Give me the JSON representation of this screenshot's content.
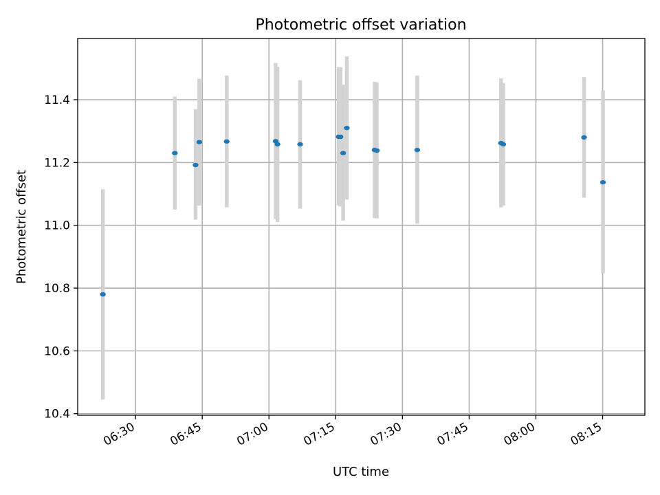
{
  "chart_data": {
    "type": "scatter",
    "title": "Photometric offset variation",
    "xlabel": "UTC time",
    "ylabel": "Photometric offset",
    "x_axis": {
      "kind": "time",
      "min": "06:17:00",
      "max": "08:24:30"
    },
    "ylim": [
      10.395,
      11.595
    ],
    "yticks": [
      10.4,
      10.6,
      10.8,
      11.0,
      11.2,
      11.4
    ],
    "ytick_labels": [
      "10.4",
      "10.6",
      "10.8",
      "11.0",
      "11.2",
      "11.4"
    ],
    "xticks": [
      "06:30:00",
      "06:45:00",
      "07:00:00",
      "07:15:00",
      "07:30:00",
      "07:45:00",
      "08:00:00",
      "08:15:00"
    ],
    "xtick_labels": [
      "06:30",
      "06:45",
      "07:00",
      "07:15",
      "07:30",
      "07:45",
      "08:00",
      "08:15"
    ],
    "grid": true,
    "point_color": "#1f77b4",
    "errorbar_color": "#d3d3d3",
    "points": [
      {
        "t": "06:22:40",
        "y": 10.78,
        "lo": 10.445,
        "hi": 11.115
      },
      {
        "t": "06:38:50",
        "y": 11.23,
        "lo": 11.05,
        "hi": 11.41
      },
      {
        "t": "06:43:30",
        "y": 11.192,
        "lo": 11.018,
        "hi": 11.37
      },
      {
        "t": "06:44:20",
        "y": 11.265,
        "lo": 11.063,
        "hi": 11.467
      },
      {
        "t": "06:50:30",
        "y": 11.267,
        "lo": 11.057,
        "hi": 11.477
      },
      {
        "t": "07:01:30",
        "y": 11.268,
        "lo": 11.02,
        "hi": 11.517
      },
      {
        "t": "07:01:55",
        "y": 11.258,
        "lo": 11.01,
        "hi": 11.505
      },
      {
        "t": "07:07:00",
        "y": 11.258,
        "lo": 11.053,
        "hi": 11.462
      },
      {
        "t": "07:15:40",
        "y": 11.282,
        "lo": 11.063,
        "hi": 11.503
      },
      {
        "t": "07:16:05",
        "y": 11.282,
        "lo": 11.06,
        "hi": 11.503
      },
      {
        "t": "07:16:40",
        "y": 11.23,
        "lo": 11.015,
        "hi": 11.448
      },
      {
        "t": "07:17:30",
        "y": 11.31,
        "lo": 11.082,
        "hi": 11.538
      },
      {
        "t": "07:23:45",
        "y": 11.24,
        "lo": 11.023,
        "hi": 11.457
      },
      {
        "t": "07:24:15",
        "y": 11.238,
        "lo": 11.022,
        "hi": 11.455
      },
      {
        "t": "07:33:20",
        "y": 11.24,
        "lo": 11.005,
        "hi": 11.477
      },
      {
        "t": "07:52:10",
        "y": 11.262,
        "lo": 11.057,
        "hi": 11.468
      },
      {
        "t": "07:52:40",
        "y": 11.258,
        "lo": 11.063,
        "hi": 11.453
      },
      {
        "t": "08:10:50",
        "y": 11.28,
        "lo": 11.088,
        "hi": 11.472
      },
      {
        "t": "08:15:05",
        "y": 11.137,
        "lo": 10.847,
        "hi": 11.43
      }
    ]
  }
}
